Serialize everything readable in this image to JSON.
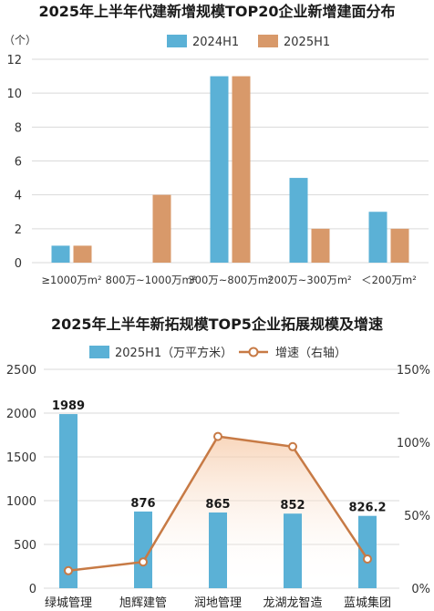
{
  "chart_data": [
    {
      "type": "bar",
      "title": "2025年上半年代建新增规模TOP20企业新增建面分布",
      "ylabel": "（个）",
      "categories": [
        "≥1000万m²",
        "800万~1000万m²",
        "300万~800万m²",
        "200万~300万m²",
        "＜200万m²"
      ],
      "series": [
        {
          "name": "2024H1",
          "values": [
            1,
            0,
            11,
            5,
            3
          ]
        },
        {
          "name": "2025H1",
          "values": [
            1,
            4,
            11,
            2,
            2
          ]
        }
      ],
      "ylim": [
        0,
        12
      ],
      "yticks": [
        "0",
        "2",
        "4",
        "6",
        "8",
        "10",
        "12"
      ],
      "grid": true,
      "legend": "top-center"
    },
    {
      "type": "bar",
      "title": "2025年上半年新拓规模TOP5企业拓展规模及增速",
      "categories": [
        "绿城管理",
        "旭辉建管",
        "润地管理",
        "龙湖龙智造",
        "蓝城集团"
      ],
      "series": [
        {
          "name": "2025H1（万平方米）",
          "values": [
            1989,
            876,
            865,
            852,
            826.2
          ],
          "data_labels": [
            "1989",
            "876",
            "865",
            "852",
            "826.2"
          ]
        },
        {
          "name": "增速（右轴）",
          "type": "line",
          "axis": "right",
          "values": [
            0.12,
            0.18,
            1.04,
            0.97,
            0.2
          ]
        }
      ],
      "ylim": [
        0,
        2500
      ],
      "yticks": [
        "0",
        "500",
        "1000",
        "1500",
        "2000",
        "2500"
      ],
      "y2lim": [
        0,
        1.5
      ],
      "y2ticks": [
        "0%",
        "50%",
        "100%",
        "150%"
      ],
      "grid": true,
      "legend": "top-center"
    }
  ],
  "colors": {
    "blue": "#5bb1d6",
    "orange": "#d8996a",
    "line": "#c77a45",
    "grid": "#d9d9d9"
  }
}
